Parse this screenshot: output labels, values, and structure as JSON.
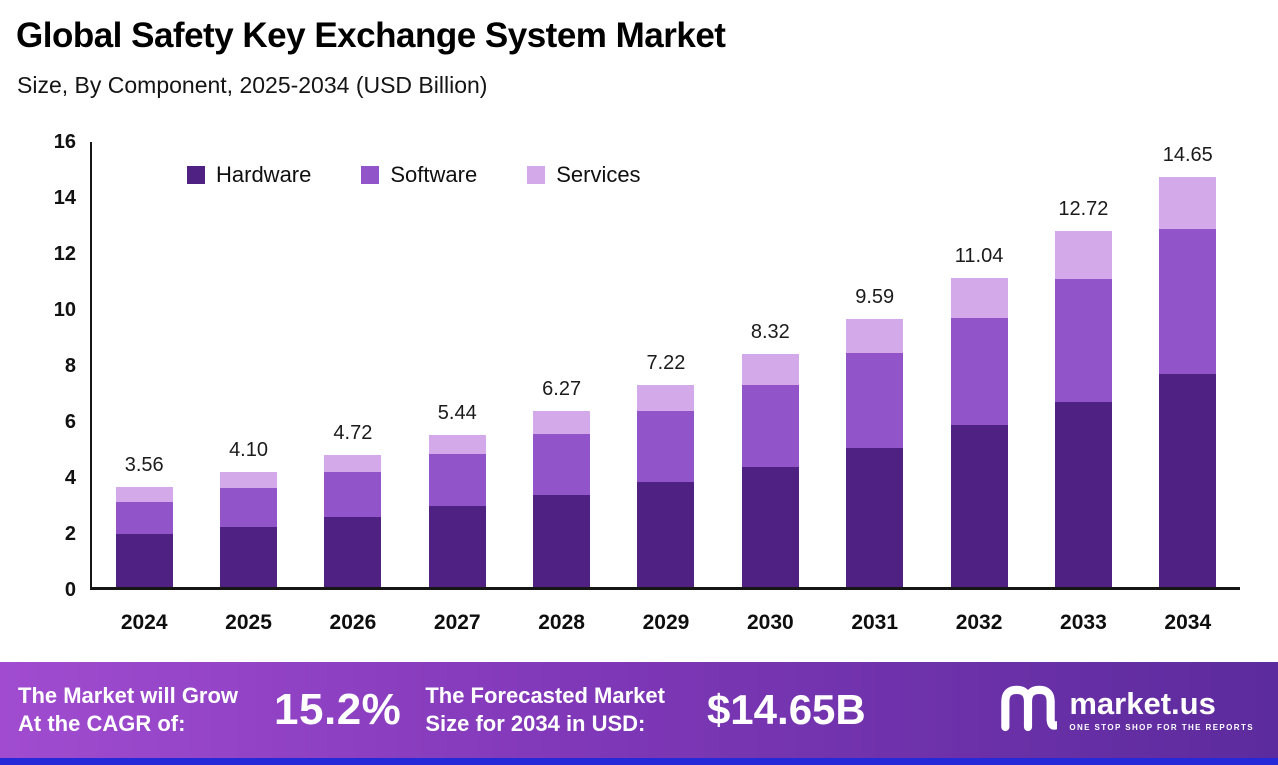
{
  "header": {
    "title": "Global Safety Key Exchange System Market",
    "subtitle": "Size, By Component, 2025-2034 (USD Billion)"
  },
  "chart_data": {
    "type": "bar",
    "stacked": true,
    "title": "Global Safety Key Exchange System Market Size, By Component, 2025-2034 (USD Billion)",
    "categories": [
      "2024",
      "2025",
      "2026",
      "2027",
      "2028",
      "2029",
      "2030",
      "2031",
      "2032",
      "2033",
      "2034"
    ],
    "series": [
      {
        "name": "Hardware",
        "color": "#4e2183",
        "values": [
          1.9,
          2.15,
          2.5,
          2.9,
          3.3,
          3.75,
          4.3,
          4.95,
          5.8,
          6.6,
          7.6
        ]
      },
      {
        "name": "Software",
        "color": "#9155c9",
        "values": [
          1.15,
          1.4,
          1.62,
          1.85,
          2.15,
          2.52,
          2.92,
          3.4,
          3.8,
          4.4,
          5.2
        ]
      },
      {
        "name": "Services",
        "color": "#d3a9ea",
        "values": [
          0.51,
          0.55,
          0.6,
          0.69,
          0.82,
          0.95,
          1.1,
          1.24,
          1.44,
          1.72,
          1.85
        ]
      }
    ],
    "totals": [
      "3.56",
      "4.10",
      "4.72",
      "5.44",
      "6.27",
      "7.22",
      "8.32",
      "9.59",
      "11.04",
      "12.72",
      "14.65"
    ],
    "ylim": [
      0,
      16
    ],
    "yticks": [
      0,
      2,
      4,
      6,
      8,
      10,
      12,
      14,
      16
    ],
    "legend_position": "top",
    "grid": false
  },
  "footer": {
    "cagr_label_line1": "The Market will Grow",
    "cagr_label_line2": "At the CAGR of:",
    "cagr_value": "15.2%",
    "forecast_label_line1": "The Forecasted Market",
    "forecast_label_line2": "Size for 2034 in USD:",
    "forecast_value": "$14.65B",
    "logo_text": "market.us",
    "logo_tagline": "ONE STOP SHOP FOR THE REPORTS"
  },
  "colors": {
    "hardware": "#4e2183",
    "software": "#9155c9",
    "services": "#d3a9ea",
    "banner_gradient_start": "#a14cd0",
    "banner_gradient_end": "#5c2b9d",
    "bottom_strip": "#2629d8"
  }
}
